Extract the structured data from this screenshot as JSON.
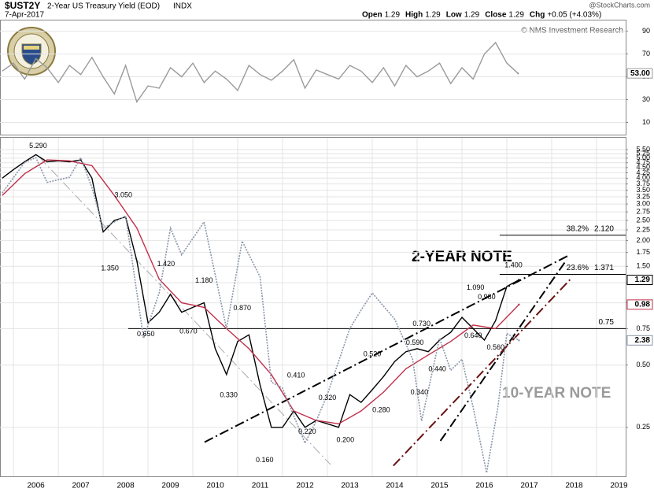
{
  "header": {
    "symbol": "$UST2Y",
    "title": "2-Year US Treasury Yield (EOD)",
    "exchange": "INDX",
    "date": "7-Apr-2017",
    "quote": [
      {
        "name": "Open",
        "value": "1.29"
      },
      {
        "name": "High",
        "value": "1.29"
      },
      {
        "name": "Low",
        "value": "1.29"
      },
      {
        "name": "Close",
        "value": "1.29"
      },
      {
        "name": "Chg",
        "value": "+0.05 (+4.03%)"
      }
    ],
    "source": "@StockCharts.com",
    "credit": "© NMS Investment Research"
  },
  "chart_data": [
    {
      "type": "line",
      "ylim": [
        0,
        98
      ],
      "yticks": [
        10,
        30,
        50,
        70,
        90
      ],
      "grid": true,
      "x": [
        2005.75,
        2006,
        2006.25,
        2006.5,
        2006.75,
        2007,
        2007.25,
        2007.5,
        2007.75,
        2008,
        2008.25,
        2008.5,
        2008.75,
        2009,
        2009.25,
        2009.5,
        2009.75,
        2010,
        2010.25,
        2010.5,
        2010.75,
        2011,
        2011.25,
        2011.5,
        2011.75,
        2012,
        2012.25,
        2012.5,
        2012.75,
        2013,
        2013.25,
        2013.5,
        2013.75,
        2014,
        2014.25,
        2014.5,
        2014.75,
        2015,
        2015.25,
        2015.5,
        2015.75,
        2016,
        2016.25,
        2016.5,
        2016.75,
        2017,
        2017.25
      ],
      "series": [
        {
          "color": "#9a9a9a",
          "last_label": "53.00",
          "values": [
            55,
            62,
            48,
            66,
            58,
            45,
            60,
            52,
            67,
            50,
            35,
            60,
            28,
            42,
            40,
            58,
            50,
            62,
            45,
            55,
            48,
            38,
            60,
            52,
            47,
            55,
            65,
            40,
            56,
            52,
            48,
            60,
            55,
            45,
            58,
            42,
            60,
            50,
            55,
            62,
            44,
            58,
            48,
            70,
            80,
            62,
            53
          ]
        }
      ]
    },
    {
      "type": "line",
      "log_scale": true,
      "grid": true,
      "xlim": [
        2005.7,
        2019.65
      ],
      "xticks": [
        2006,
        2007,
        2008,
        2009,
        2010,
        2011,
        2012,
        2013,
        2014,
        2015,
        2016,
        2017,
        2018,
        2019
      ],
      "ylim": [
        0.145,
        6.27
      ],
      "yticks": [
        {
          "value": 5.5,
          "label": "5.50"
        },
        5.25,
        {
          "value": 5,
          "label": "5.00"
        },
        4.75,
        {
          "value": 4.5,
          "label": "4.50"
        },
        4.25,
        {
          "value": 4,
          "label": "4.00"
        },
        3.75,
        {
          "value": 3.5,
          "label": "3.50"
        },
        3.25,
        {
          "value": 3,
          "label": "3.00"
        },
        2.75,
        {
          "value": 2.5,
          "label": "2.50"
        },
        2.25,
        {
          "value": 2,
          "label": "2.00"
        },
        1.75,
        {
          "value": 1.5,
          "label": "1.50"
        },
        1.25,
        {
          "value": 1,
          "label": "1.00"
        },
        0.75,
        {
          "value": 0.5,
          "label": "0.50"
        },
        0.25
      ],
      "y2lim": [
        1.35,
        5.54
      ],
      "series": [
        {
          "name": "2-YEAR NOTE",
          "color": "#000000",
          "last_label": "1.29",
          "x": [
            2005.75,
            2006,
            2006.25,
            2006.5,
            2006.75,
            2007,
            2007.25,
            2007.5,
            2007.75,
            2008,
            2008.25,
            2008.5,
            2008.75,
            2009,
            2009.25,
            2009.5,
            2009.75,
            2010,
            2010.25,
            2010.5,
            2010.75,
            2011,
            2011.25,
            2011.5,
            2011.75,
            2012,
            2012.25,
            2012.5,
            2012.75,
            2013,
            2013.25,
            2013.5,
            2013.75,
            2014,
            2014.25,
            2014.5,
            2014.75,
            2015,
            2015.25,
            2015.5,
            2015.75,
            2016,
            2016.25,
            2016.5,
            2016.75,
            2017,
            2017.27
          ],
          "values": [
            4.0,
            4.4,
            4.8,
            5.2,
            4.8,
            4.85,
            4.8,
            4.9,
            4.0,
            2.2,
            2.5,
            2.6,
            1.6,
            0.8,
            0.9,
            1.1,
            0.9,
            0.95,
            1.0,
            0.6,
            0.45,
            0.65,
            0.7,
            0.4,
            0.25,
            0.25,
            0.3,
            0.25,
            0.27,
            0.26,
            0.25,
            0.36,
            0.33,
            0.38,
            0.44,
            0.52,
            0.58,
            0.6,
            0.58,
            0.66,
            0.72,
            0.85,
            0.75,
            0.66,
            0.82,
            1.2,
            1.29
          ]
        },
        {
          "color": "#c0304a",
          "last_label": "0.98",
          "x": [
            2005.75,
            2006.25,
            2006.75,
            2007.25,
            2007.75,
            2008.25,
            2008.75,
            2009.25,
            2009.75,
            2010.25,
            2010.75,
            2011.25,
            2011.75,
            2012.25,
            2012.75,
            2013.25,
            2013.75,
            2014.25,
            2014.75,
            2015.25,
            2015.75,
            2016.25,
            2016.75,
            2017.27
          ],
          "values": [
            3.3,
            4.2,
            4.9,
            4.85,
            4.6,
            3.3,
            2.3,
            1.3,
            1.0,
            0.95,
            0.75,
            0.6,
            0.45,
            0.3,
            0.27,
            0.26,
            0.3,
            0.37,
            0.48,
            0.56,
            0.65,
            0.78,
            0.75,
            0.98
          ]
        },
        {
          "name": "10-YEAR NOTE",
          "color": "#8a96a8",
          "axis": "y2",
          "last_label": "2.38",
          "x": [
            2005.75,
            2006.25,
            2006.5,
            2006.75,
            2007.25,
            2007.5,
            2007.75,
            2008,
            2008.5,
            2008.9,
            2009.25,
            2009.5,
            2009.75,
            2010.25,
            2010.75,
            2011.1,
            2011.5,
            2011.75,
            2012,
            2012.5,
            2012.75,
            2013,
            2013.5,
            2013.75,
            2014,
            2014.5,
            2014.9,
            2015.1,
            2015.5,
            2015.75,
            2016,
            2016.25,
            2016.55,
            2016.8,
            2017,
            2017.27
          ],
          "values": [
            4.4,
            5.0,
            5.1,
            4.6,
            4.7,
            5.1,
            4.5,
            3.8,
            4.0,
            2.4,
            2.9,
            3.8,
            3.4,
            3.9,
            2.5,
            3.6,
            3.1,
            2.0,
            1.95,
            1.55,
            1.7,
            1.9,
            2.5,
            2.7,
            2.9,
            2.6,
            2.2,
            1.7,
            2.4,
            2.1,
            2.2,
            1.8,
            1.37,
            1.8,
            2.45,
            2.38
          ]
        }
      ],
      "levels": [
        {
          "label": "0.75",
          "value": 0.75,
          "x0": 2008.56
        },
        {
          "name": "38.2%",
          "label": "2.120",
          "value": 2.12,
          "x0": 2016.84
        },
        {
          "name": "23.6%",
          "label": "1.371",
          "value": 1.371,
          "x0": 2016.84
        }
      ],
      "trendlines": [
        {
          "color": "#000000",
          "x": [
            2010.26,
            2018.37
          ],
          "y": [
            0.212,
            1.69
          ]
        },
        {
          "color": "#000000",
          "x": [
            2015.52,
            2018.33
          ],
          "y": [
            0.215,
            1.61
          ]
        },
        {
          "color": "#6b1010",
          "x": [
            2014.47,
            2018.42
          ],
          "y": [
            0.163,
            1.3
          ]
        },
        {
          "color": "#aaaaaa",
          "x": [
            2006.58,
            2013.07
          ],
          "y": [
            5.04,
            0.165
          ]
        }
      ],
      "annotations": [
        {
          "label": "5.290",
          "x": 2006.55,
          "y": 5.29
        },
        {
          "label": "3.050",
          "x": 2008.45,
          "y": 3.05
        },
        {
          "label": "1.350",
          "x": 2008.15,
          "y": 1.35
        },
        {
          "label": "1.420",
          "x": 2009.4,
          "y": 1.42
        },
        {
          "label": "0.650",
          "x": 2008.95,
          "y": 0.65
        },
        {
          "label": "1.180",
          "x": 2010.25,
          "y": 1.18
        },
        {
          "label": "0.670",
          "x": 2009.9,
          "y": 0.67
        },
        {
          "label": "0.870",
          "x": 2011.1,
          "y": 0.87
        },
        {
          "label": "0.330",
          "x": 2010.8,
          "y": 0.33
        },
        {
          "label": "0.410",
          "x": 2012.3,
          "y": 0.41
        },
        {
          "label": "0.160",
          "x": 2011.6,
          "y": 0.16
        },
        {
          "label": "0.320",
          "x": 2013.0,
          "y": 0.32
        },
        {
          "label": "0.220",
          "x": 2012.55,
          "y": 0.22
        },
        {
          "label": "0.200",
          "x": 2013.4,
          "y": 0.2
        },
        {
          "label": "0.520",
          "x": 2014.0,
          "y": 0.52
        },
        {
          "label": "0.280",
          "x": 2014.2,
          "y": 0.28
        },
        {
          "label": "0.730",
          "x": 2015.1,
          "y": 0.73
        },
        {
          "label": "0.590",
          "x": 2014.95,
          "y": 0.59
        },
        {
          "label": "0.440",
          "x": 2015.45,
          "y": 0.44
        },
        {
          "label": "0.340",
          "x": 2015.05,
          "y": 0.34
        },
        {
          "label": "1.090",
          "x": 2016.3,
          "y": 1.09
        },
        {
          "label": "0.980",
          "x": 2016.55,
          "y": 0.98
        },
        {
          "label": "0.640",
          "x": 2016.25,
          "y": 0.64
        },
        {
          "label": "0.560",
          "x": 2016.75,
          "y": 0.56
        },
        {
          "label": "1.400",
          "x": 2017.15,
          "y": 1.4
        }
      ]
    }
  ]
}
